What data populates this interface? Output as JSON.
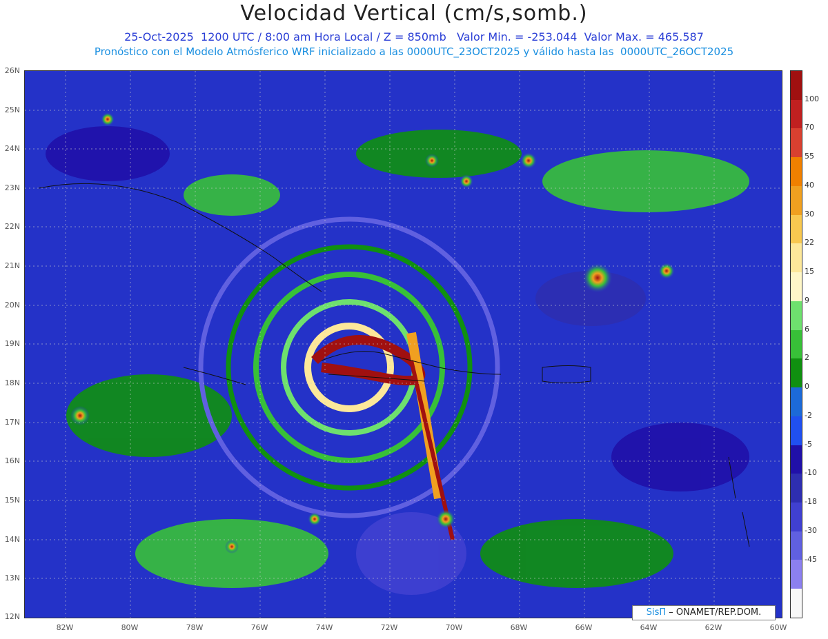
{
  "header": {
    "title": "Velocidad Vertical (cm/s,somb.)",
    "line1": "25-Oct-2025  1200 UTC / 8:00 am Hora Local / Z = 850mb   Valor Min. = -253.044  Valor Max. = 465.587",
    "line2": "Pronóstico con el Modelo Atmósferico WRF inicializado a las 0000UTC_23OCT2025 y válido hasta las  0000UTC_26OCT2025"
  },
  "axes": {
    "lat_labels": [
      "26N",
      "25N",
      "24N",
      "23N",
      "22N",
      "21N",
      "20N",
      "19N",
      "18N",
      "17N",
      "16N",
      "15N",
      "14N",
      "13N",
      "12N"
    ],
    "lon_labels": [
      "82W",
      "80W",
      "78W",
      "76W",
      "74W",
      "72W",
      "70W",
      "68W",
      "66W",
      "64W",
      "62W",
      "60W"
    ]
  },
  "colorbar": {
    "labels": [
      "100",
      "70",
      "55",
      "40",
      "30",
      "22",
      "15",
      "9",
      "6",
      "2",
      "0",
      "-2",
      "-5",
      "-10",
      "-18",
      "-30",
      "-45"
    ],
    "colors": [
      "#a01010",
      "#c02020",
      "#d84030",
      "#f08000",
      "#f0a020",
      "#f8c850",
      "#fde89a",
      "#fff7c8",
      "#6ee06e",
      "#38c038",
      "#109010",
      "#1c6ad8",
      "#2050f0",
      "#2010a8",
      "#2e2eb0",
      "#4040d0",
      "#6060e0",
      "#8c80f0",
      "#f8f8f8"
    ]
  },
  "credit": {
    "logo": "SisΠ",
    "text": "– ONAMET/REP.DOM."
  }
}
